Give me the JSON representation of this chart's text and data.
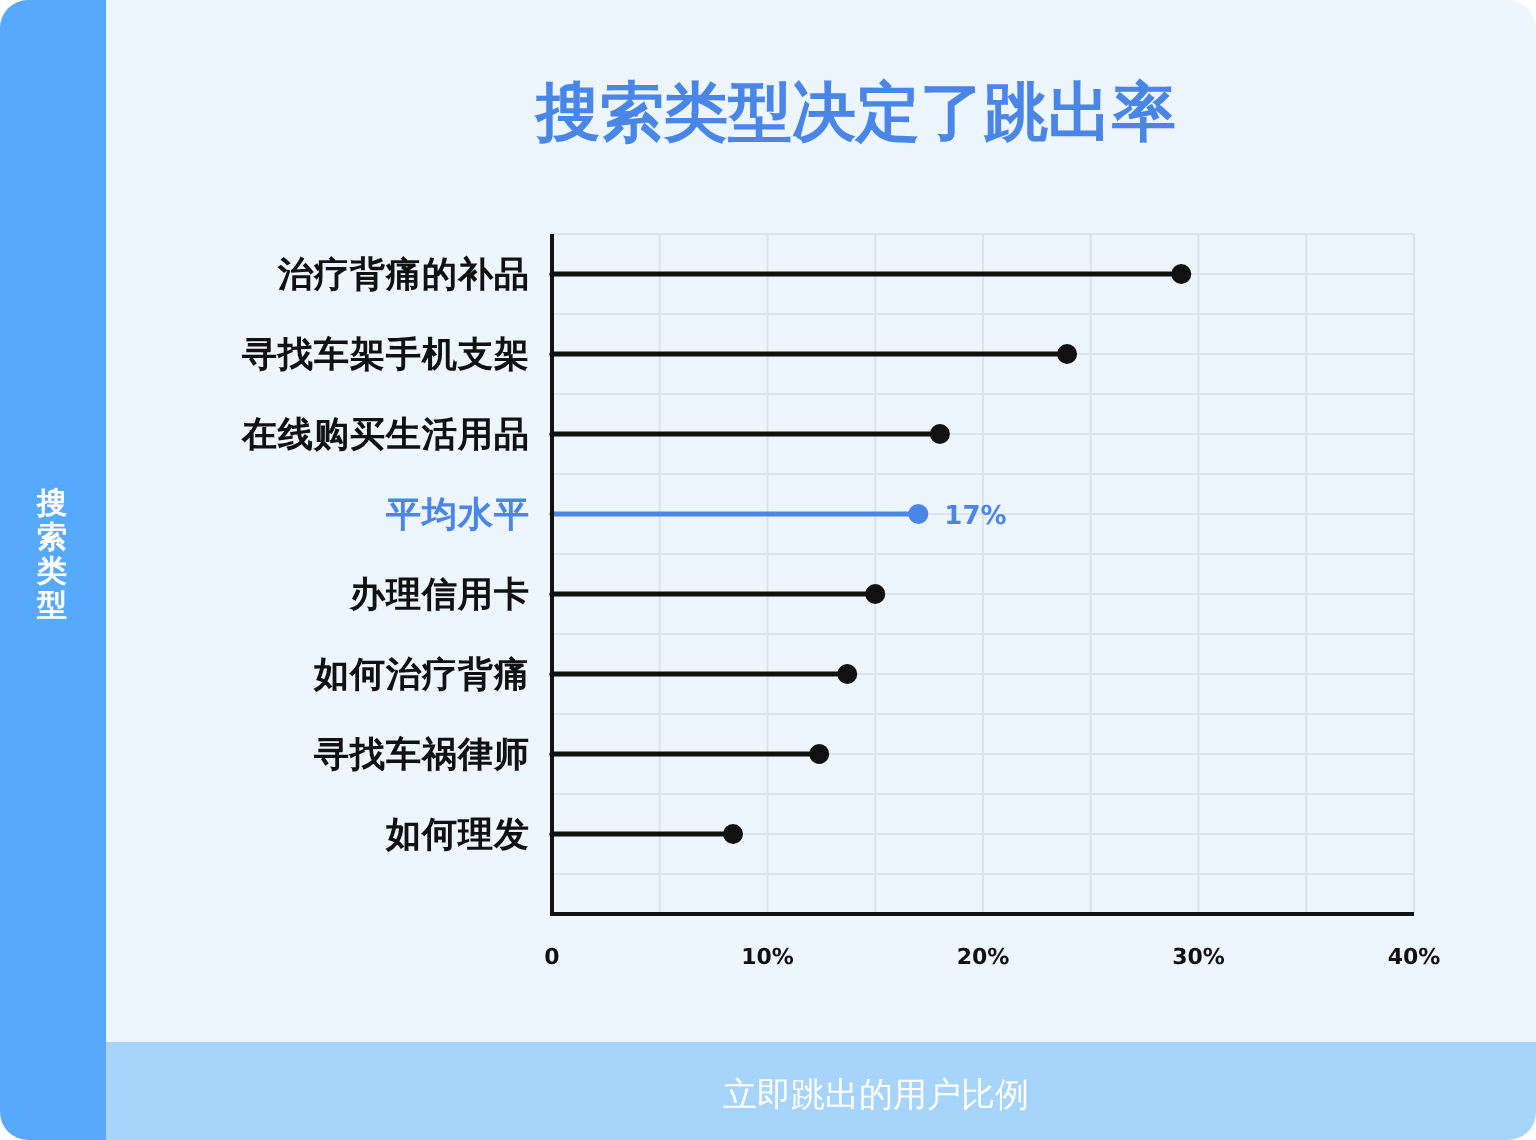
{
  "chart_data": {
    "type": "lollipop",
    "title": "搜索类型决定了跳出率",
    "xlabel": "立即跳出的用户比例",
    "annotations": [
      "搜索类型"
    ],
    "orientation": "horizontal",
    "categories": [
      "治疗背痛的补品",
      "寻找车架手机支架",
      "在线购买生活用品",
      "平均水平",
      "办理信用卡",
      "如何治疗背痛",
      "寻找车祸律师",
      "如何理发"
    ],
    "values": [
      29.2,
      23.9,
      18.0,
      17,
      15.0,
      13.7,
      12.4,
      8.4
    ],
    "colors": [
      "#111111",
      "#111111",
      "#111111",
      "#4a86e8",
      "#111111",
      "#111111",
      "#111111",
      "#111111"
    ],
    "value_labels": [
      null,
      null,
      null,
      "17%",
      null,
      null,
      null,
      null
    ],
    "xlim": [
      0,
      40
    ],
    "xticks": [
      0,
      {
        "value": 10,
        "label": "10%"
      },
      {
        "value": 20,
        "label": "20%"
      },
      {
        "value": 30,
        "label": "30%"
      },
      {
        "value": 40,
        "label": "40%"
      }
    ],
    "grid": true,
    "marker": "circle"
  }
}
